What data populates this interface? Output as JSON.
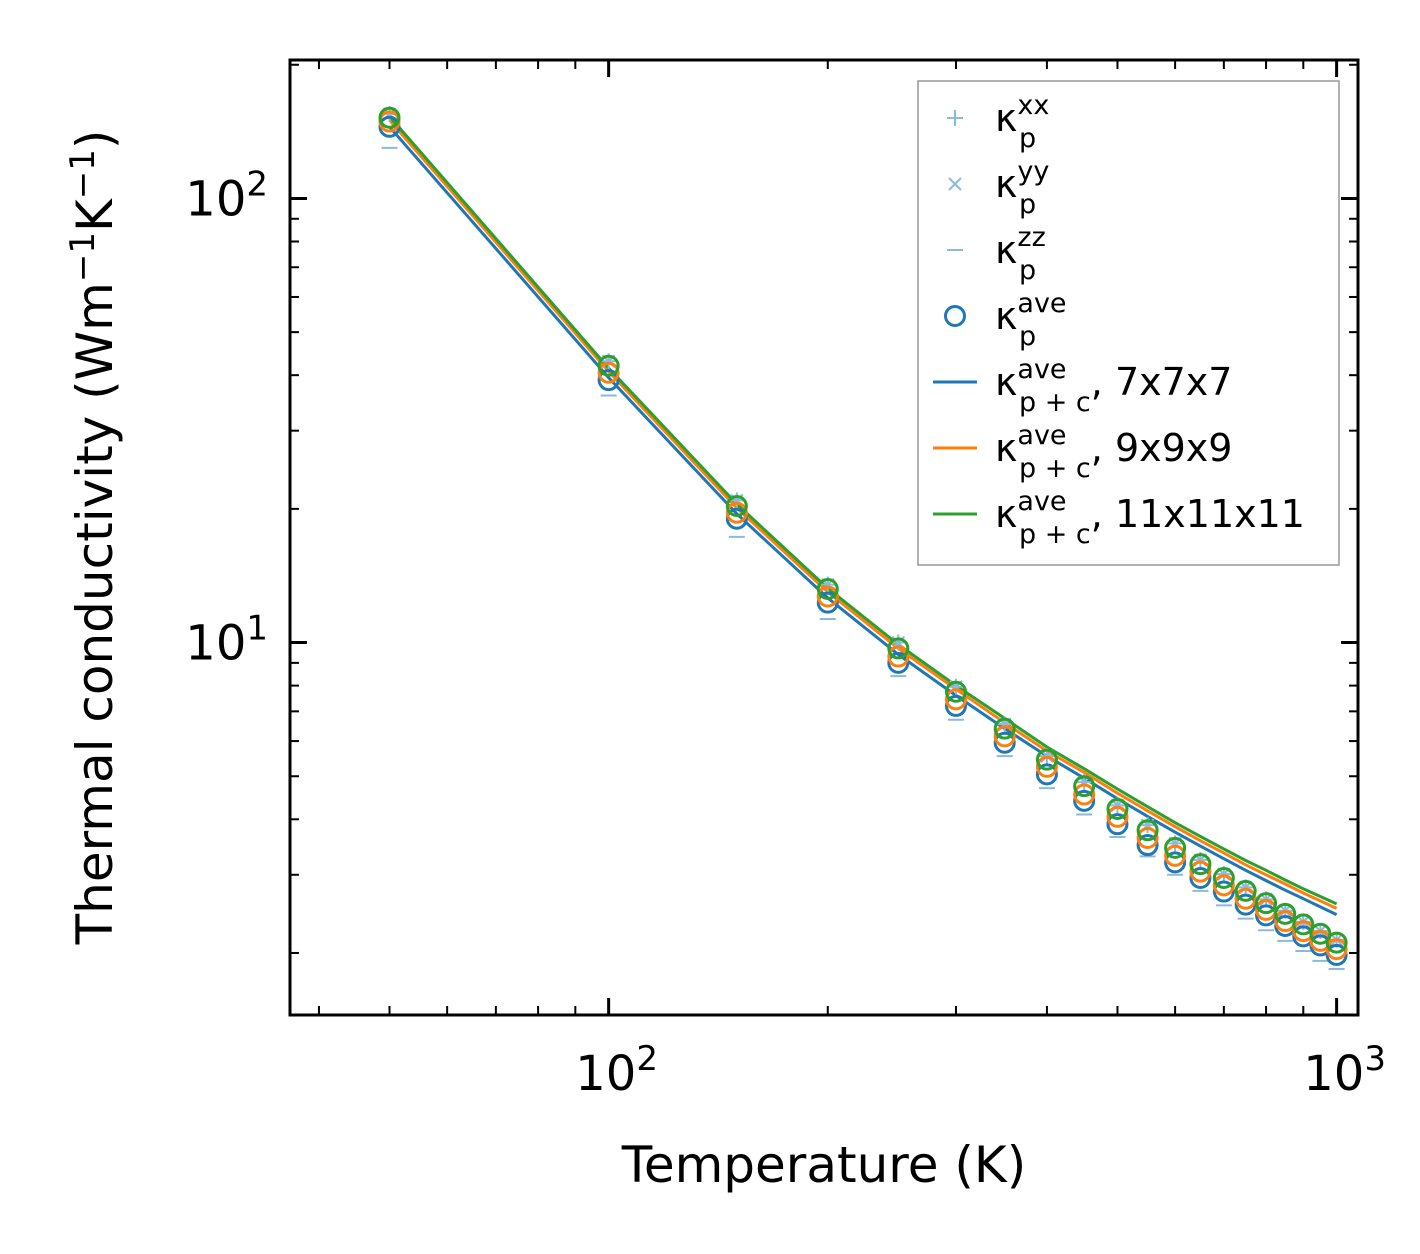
{
  "chart_data": {
    "type": "line",
    "xscale": "log",
    "yscale": "log",
    "xlim": [
      36.5,
      1070
    ],
    "ylim": [
      1.45,
      205
    ],
    "xlabel": "Temperature (K)",
    "ylabel": {
      "base": "Thermal conductivity (Wm",
      "exp1": "−1",
      "mid": "K",
      "exp2": "−1",
      "end": ")"
    },
    "x_major_ticks": [
      {
        "value": 100,
        "base": "10",
        "exp": "2"
      },
      {
        "value": 1000,
        "base": "10",
        "exp": "3"
      }
    ],
    "y_major_ticks": [
      {
        "value": 10,
        "base": "10",
        "exp": "1"
      },
      {
        "value": 100,
        "base": "10",
        "exp": "2"
      }
    ],
    "x_minor_ticks": [
      40,
      50,
      60,
      70,
      80,
      90,
      200,
      300,
      400,
      500,
      600,
      700,
      800,
      900
    ],
    "y_minor_ticks": [
      2,
      3,
      4,
      5,
      6,
      7,
      8,
      9,
      20,
      30,
      40,
      50,
      60,
      70,
      80,
      90,
      200
    ],
    "x": [
      50,
      100,
      150,
      200,
      250,
      300,
      350,
      400,
      450,
      500,
      550,
      600,
      650,
      700,
      750,
      800,
      850,
      900,
      950,
      1000
    ],
    "scatter_series": [
      {
        "name": "κp^xx",
        "marker": "+",
        "color": "#8cb9dc",
        "values": [
          155.0,
          43.0,
          20.9,
          13.5,
          10.0,
          7.95,
          6.55,
          5.55,
          4.85,
          4.3,
          3.88,
          3.53,
          3.24,
          3.01,
          2.81,
          2.64,
          2.49,
          2.35,
          2.24,
          2.14
        ]
      },
      {
        "name": "κp^yy",
        "marker": "x",
        "color": "#8cb9dc",
        "values": [
          155.0,
          43.0,
          20.9,
          13.5,
          10.0,
          7.95,
          6.55,
          5.55,
          4.85,
          4.3,
          3.88,
          3.53,
          3.24,
          3.01,
          2.81,
          2.64,
          2.49,
          2.35,
          2.24,
          2.14
        ]
      },
      {
        "name": "κp^zz",
        "marker": "_",
        "color": "#8cb9dc",
        "values": [
          130.0,
          36.0,
          17.3,
          11.3,
          8.4,
          6.7,
          5.55,
          4.7,
          4.1,
          3.65,
          3.3,
          3.0,
          2.76,
          2.56,
          2.39,
          2.25,
          2.13,
          2.02,
          1.92,
          1.84
        ]
      },
      {
        "name": "κp^ave",
        "marker": "o",
        "color": "#1f77b4",
        "values": [
          145.0,
          39.0,
          19.0,
          12.3,
          9.0,
          7.2,
          5.95,
          5.05,
          4.4,
          3.9,
          3.5,
          3.2,
          2.95,
          2.75,
          2.57,
          2.43,
          2.3,
          2.18,
          2.08,
          1.98
        ]
      },
      {
        "name": "κp^ave 9x9x9",
        "marker": "o",
        "color": "#ff7f0e",
        "values": [
          149.0,
          40.5,
          19.6,
          12.7,
          9.3,
          7.45,
          6.15,
          5.25,
          4.55,
          4.05,
          3.63,
          3.31,
          3.05,
          2.84,
          2.65,
          2.5,
          2.36,
          2.24,
          2.13,
          2.04
        ]
      },
      {
        "name": "κp^ave 11x11x11",
        "marker": "o",
        "color": "#2ca02c",
        "values": [
          152.0,
          42.0,
          20.3,
          13.2,
          9.7,
          7.75,
          6.4,
          5.45,
          4.75,
          4.22,
          3.78,
          3.45,
          3.17,
          2.95,
          2.76,
          2.59,
          2.45,
          2.32,
          2.21,
          2.11
        ]
      }
    ],
    "line_series": [
      {
        "name": "7x7x7",
        "color": "#1f77b4",
        "values": [
          145.0,
          39.5,
          19.5,
          12.6,
          9.4,
          7.6,
          6.4,
          5.55,
          4.95,
          4.45,
          4.06,
          3.74,
          3.48,
          3.26,
          3.07,
          2.91,
          2.77,
          2.65,
          2.54,
          2.44
        ]
      },
      {
        "name": "9x9x9",
        "color": "#ff7f0e",
        "values": [
          150.0,
          40.8,
          20.1,
          13.0,
          9.7,
          7.85,
          6.6,
          5.7,
          5.1,
          4.58,
          4.18,
          3.85,
          3.58,
          3.36,
          3.16,
          3.0,
          2.86,
          2.73,
          2.62,
          2.52
        ]
      },
      {
        "name": "11x11x11",
        "color": "#2ca02c",
        "values": [
          153.0,
          41.5,
          20.5,
          13.25,
          9.9,
          8.0,
          6.75,
          5.82,
          5.2,
          4.68,
          4.27,
          3.93,
          3.66,
          3.43,
          3.23,
          3.07,
          2.92,
          2.79,
          2.68,
          2.58
        ]
      }
    ],
    "legend": {
      "position": "top-right",
      "entries": [
        {
          "kind": "marker",
          "marker": "+",
          "color": "#8cb9dc",
          "symbol": "κ",
          "sup": "xx",
          "sub": "p",
          "suffix": ""
        },
        {
          "kind": "marker",
          "marker": "x",
          "color": "#8cb9dc",
          "symbol": "κ",
          "sup": "yy",
          "sub": "p",
          "suffix": ""
        },
        {
          "kind": "marker",
          "marker": "_",
          "color": "#8cb9dc",
          "symbol": "κ",
          "sup": "zz",
          "sub": "p",
          "suffix": ""
        },
        {
          "kind": "marker",
          "marker": "o",
          "color": "#1f77b4",
          "symbol": "κ",
          "sup": "ave",
          "sub": "p",
          "suffix": ""
        },
        {
          "kind": "line",
          "color": "#1f77b4",
          "symbol": "κ",
          "sup": "ave",
          "sub": "p + c",
          "suffix": ", 7x7x7"
        },
        {
          "kind": "line",
          "color": "#ff7f0e",
          "symbol": "κ",
          "sup": "ave",
          "sub": "p + c",
          "suffix": ", 9x9x9"
        },
        {
          "kind": "line",
          "color": "#2ca02c",
          "symbol": "κ",
          "sup": "ave",
          "sub": "p + c",
          "suffix": ", 11x11x11"
        }
      ]
    }
  }
}
